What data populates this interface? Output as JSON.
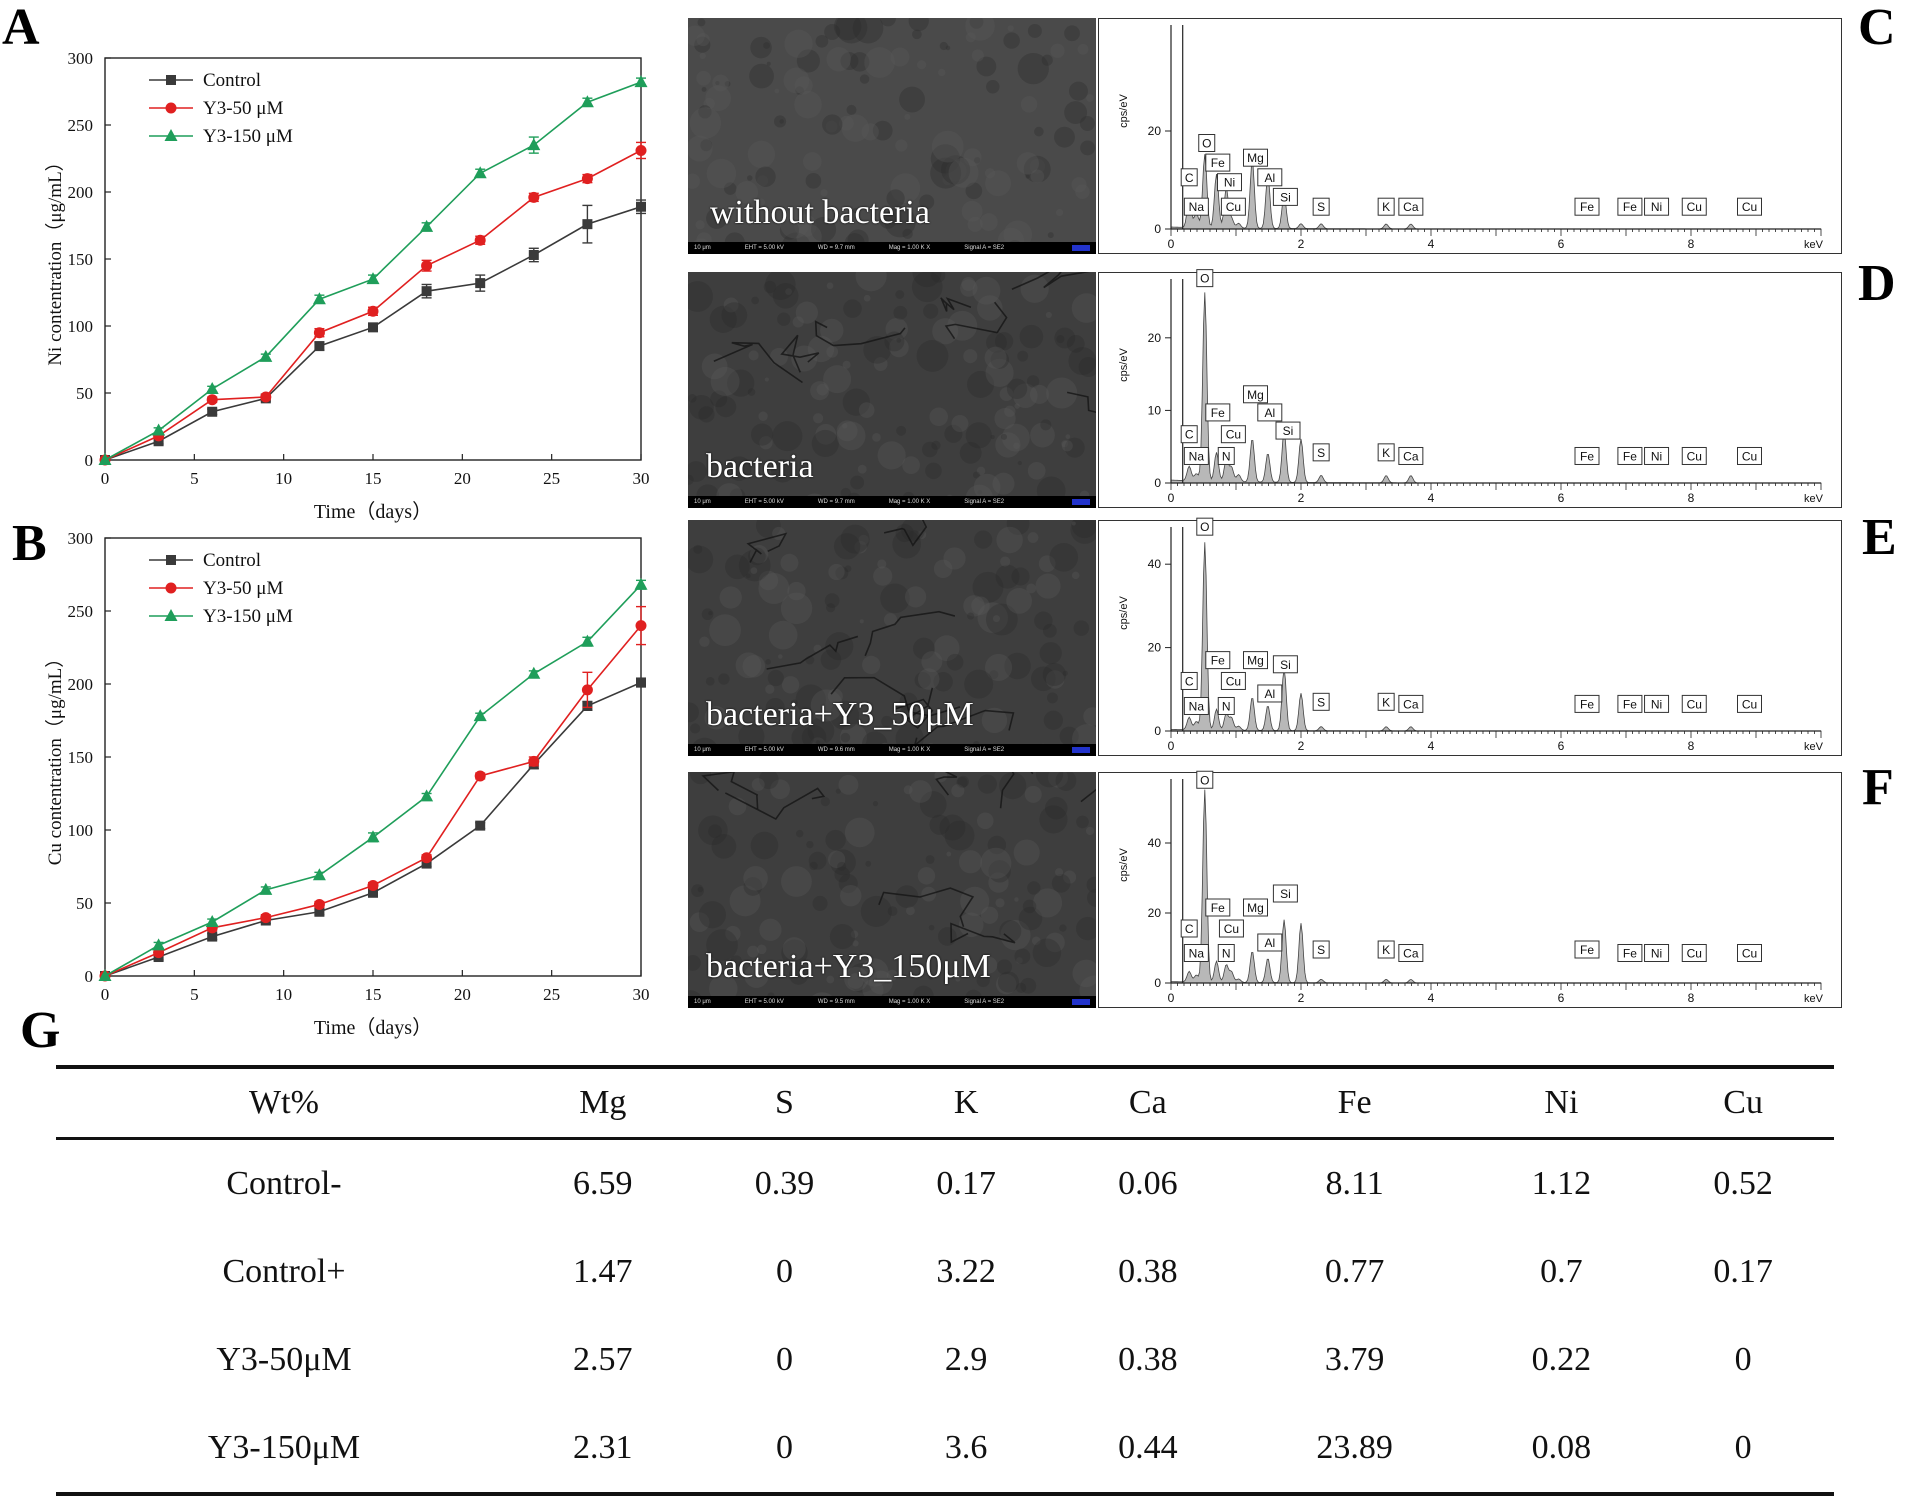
{
  "panel_labels": {
    "A": "A",
    "B": "B",
    "C": "C",
    "D": "D",
    "E": "E",
    "F": "F",
    "G": "G"
  },
  "chart_data": [
    {
      "type": "line",
      "panel": "A",
      "xlabel": "Time（days）",
      "ylabel": "Ni contentration（μg/mL）",
      "xlim": [
        0,
        30
      ],
      "ylim": [
        0,
        300
      ],
      "xticks": [
        0,
        5,
        10,
        15,
        20,
        25,
        30
      ],
      "yticks": [
        0,
        50,
        100,
        150,
        200,
        250,
        300
      ],
      "legend": "top-left",
      "x": [
        0,
        3,
        6,
        9,
        12,
        15,
        18,
        21,
        24,
        27,
        30
      ],
      "series": [
        {
          "name": "Control",
          "color": "#3a3a3a",
          "marker": "square",
          "values": [
            0,
            14,
            36,
            46,
            85,
            99,
            126,
            132,
            153,
            176,
            189
          ],
          "errors": [
            0,
            2,
            2,
            2,
            3,
            3,
            5,
            6,
            5,
            14,
            5
          ]
        },
        {
          "name": "Y3-50 μM",
          "color": "#e02020",
          "marker": "circle",
          "values": [
            0,
            18,
            45,
            47,
            95,
            111,
            145,
            164,
            196,
            210,
            231
          ],
          "errors": [
            0,
            2,
            2,
            2,
            3,
            3,
            4,
            3,
            3,
            3,
            6
          ]
        },
        {
          "name": "Y3-150 μM",
          "color": "#1f9e5a",
          "marker": "triangle",
          "values": [
            0,
            22,
            53,
            77,
            120,
            135,
            174,
            214,
            235,
            267,
            282
          ],
          "errors": [
            0,
            2,
            2,
            2,
            3,
            3,
            3,
            3,
            6,
            3,
            3
          ]
        }
      ]
    },
    {
      "type": "line",
      "panel": "B",
      "xlabel": "Time（days）",
      "ylabel": "Cu contentration（μg/mL）",
      "xlim": [
        0,
        30
      ],
      "ylim": [
        0,
        300
      ],
      "xticks": [
        0,
        5,
        10,
        15,
        20,
        25,
        30
      ],
      "yticks": [
        0,
        50,
        100,
        150,
        200,
        250,
        300
      ],
      "legend": "top-left",
      "x": [
        0,
        3,
        6,
        9,
        12,
        15,
        18,
        21,
        24,
        27,
        30
      ],
      "series": [
        {
          "name": "Control",
          "color": "#3a3a3a",
          "marker": "square",
          "values": [
            0,
            13,
            27,
            38,
            44,
            57,
            77,
            103,
            145,
            185,
            201
          ],
          "errors": [
            0,
            2,
            2,
            2,
            2,
            2,
            2,
            2,
            3,
            3,
            3
          ]
        },
        {
          "name": "Y3-50 μM",
          "color": "#e02020",
          "marker": "circle",
          "values": [
            0,
            16,
            33,
            40,
            49,
            62,
            81,
            137,
            147,
            196,
            240
          ],
          "errors": [
            0,
            2,
            2,
            2,
            2,
            2,
            2,
            2,
            3,
            12,
            13
          ]
        },
        {
          "name": "Y3-150 μM",
          "color": "#1f9e5a",
          "marker": "triangle",
          "values": [
            0,
            21,
            37,
            59,
            69,
            95,
            123,
            178,
            207,
            229,
            268
          ],
          "errors": [
            0,
            2,
            2,
            2,
            2,
            3,
            2,
            2,
            2,
            3,
            3
          ]
        }
      ]
    }
  ],
  "sem_images": [
    {
      "caption": "without bacteria",
      "scale": "10 μm",
      "eht": "EHT = 5.00 kV",
      "wd": "WD = 9.7 mm",
      "mag": "Mag = 1.00 K X",
      "signal": "Signal A = SE2"
    },
    {
      "caption": "bacteria",
      "scale": "10 μm",
      "eht": "EHT = 5.00 kV",
      "wd": "WD = 9.7 mm",
      "mag": "Mag = 1.00 K X",
      "signal": "Signal A = SE2"
    },
    {
      "caption": "bacteria+Y3_50μM",
      "scale": "10 μm",
      "eht": "EHT = 5.00 kV",
      "wd": "WD = 9.6 mm",
      "mag": "Mag = 1.00 K X",
      "signal": "Signal A = SE2"
    },
    {
      "caption": "bacteria+Y3_150μM",
      "scale": "10 μm",
      "eht": "EHT = 5.00 kV",
      "wd": "WD = 9.5 mm",
      "mag": "Mag = 1.00 K X",
      "signal": "Signal A = SE2"
    }
  ],
  "eds_spectra": {
    "ylabel": "cps/eV",
    "xunit": "keV",
    "xticks": [
      0,
      2,
      4,
      6,
      8
    ],
    "peaks_keV": [
      0.28,
      0.39,
      0.52,
      0.7,
      0.85,
      0.93,
      1.04,
      1.25,
      1.49,
      1.74,
      2.0,
      2.31,
      3.31,
      3.69
    ],
    "panels": [
      {
        "yticks": [
          0,
          20
        ],
        "ymax": 40,
        "peak_heights": [
          6,
          3,
          15,
          11,
          8,
          2,
          1,
          14,
          11,
          7,
          1,
          1,
          1,
          1
        ],
        "labels": [
          {
            "t": "C",
            "e": 0.28,
            "h": 8
          },
          {
            "t": "Na",
            "e": 0.39,
            "h": 2
          },
          {
            "t": "O",
            "e": 0.55,
            "h": 15
          },
          {
            "t": "Fe",
            "e": 0.72,
            "h": 11
          },
          {
            "t": "Ni",
            "e": 0.9,
            "h": 7
          },
          {
            "t": "Cu",
            "e": 0.96,
            "h": 2
          },
          {
            "t": "Mg",
            "e": 1.3,
            "h": 12
          },
          {
            "t": "Al",
            "e": 1.52,
            "h": 8
          },
          {
            "t": "Si",
            "e": 1.76,
            "h": 4
          },
          {
            "t": "S",
            "e": 2.31,
            "h": 2
          },
          {
            "t": "K",
            "e": 3.31,
            "h": 2
          },
          {
            "t": "Ca",
            "e": 3.69,
            "h": 2
          },
          {
            "t": "Fe",
            "e": 6.4,
            "h": 2
          },
          {
            "t": "Fe",
            "e": 7.06,
            "h": 2
          },
          {
            "t": "Ni",
            "e": 7.47,
            "h": 2
          },
          {
            "t": "Cu",
            "e": 8.05,
            "h": 2
          },
          {
            "t": "Cu",
            "e": 8.9,
            "h": 2
          }
        ]
      },
      {
        "yticks": [
          0,
          10,
          20
        ],
        "ymax": 27,
        "peak_heights": [
          2,
          1,
          26,
          4,
          3,
          2,
          1,
          6,
          4,
          7,
          6,
          1,
          1,
          1
        ],
        "labels": [
          {
            "t": "O",
            "e": 0.52,
            "h": 26.5
          },
          {
            "t": "C",
            "e": 0.28,
            "h": 5
          },
          {
            "t": "Na",
            "e": 0.39,
            "h": 2
          },
          {
            "t": "Fe",
            "e": 0.72,
            "h": 8
          },
          {
            "t": "Cu",
            "e": 0.96,
            "h": 5
          },
          {
            "t": "N",
            "e": 0.85,
            "h": 2
          },
          {
            "t": "Mg",
            "e": 1.3,
            "h": 10.5
          },
          {
            "t": "Al",
            "e": 1.52,
            "h": 8
          },
          {
            "t": "Si",
            "e": 1.8,
            "h": 5.5
          },
          {
            "t": "S",
            "e": 2.31,
            "h": 2.5
          },
          {
            "t": "K",
            "e": 3.31,
            "h": 2.5
          },
          {
            "t": "Ca",
            "e": 3.69,
            "h": 2
          },
          {
            "t": "Fe",
            "e": 6.4,
            "h": 2
          },
          {
            "t": "Fe",
            "e": 7.06,
            "h": 2
          },
          {
            "t": "Ni",
            "e": 7.47,
            "h": 2
          },
          {
            "t": "Cu",
            "e": 8.05,
            "h": 2
          },
          {
            "t": "Cu",
            "e": 8.9,
            "h": 2
          }
        ]
      },
      {
        "yticks": [
          0,
          20,
          40
        ],
        "ymax": 47,
        "peak_heights": [
          3,
          2,
          45,
          5,
          4,
          3,
          1,
          8,
          6,
          15,
          9,
          1,
          1,
          1
        ],
        "labels": [
          {
            "t": "O",
            "e": 0.52,
            "h": 46
          },
          {
            "t": "C",
            "e": 0.28,
            "h": 9
          },
          {
            "t": "Na",
            "e": 0.39,
            "h": 3
          },
          {
            "t": "Fe",
            "e": 0.72,
            "h": 14
          },
          {
            "t": "Cu",
            "e": 0.96,
            "h": 9
          },
          {
            "t": "N",
            "e": 0.85,
            "h": 3
          },
          {
            "t": "Mg",
            "e": 1.3,
            "h": 14
          },
          {
            "t": "Al",
            "e": 1.52,
            "h": 6
          },
          {
            "t": "Si",
            "e": 1.76,
            "h": 13
          },
          {
            "t": "S",
            "e": 2.31,
            "h": 4
          },
          {
            "t": "K",
            "e": 3.31,
            "h": 4
          },
          {
            "t": "Ca",
            "e": 3.69,
            "h": 3.5
          },
          {
            "t": "Fe",
            "e": 6.4,
            "h": 3.5
          },
          {
            "t": "Fe",
            "e": 7.06,
            "h": 3.5
          },
          {
            "t": "Ni",
            "e": 7.47,
            "h": 3.5
          },
          {
            "t": "Cu",
            "e": 8.05,
            "h": 3.5
          },
          {
            "t": "Cu",
            "e": 8.9,
            "h": 3.5
          }
        ]
      },
      {
        "yticks": [
          0,
          20,
          40
        ],
        "ymax": 56,
        "peak_heights": [
          3,
          2,
          55,
          6,
          5,
          3,
          1,
          9,
          7,
          18,
          17,
          1,
          1,
          1
        ],
        "labels": [
          {
            "t": "O",
            "e": 0.52,
            "h": 54.5
          },
          {
            "t": "C",
            "e": 0.28,
            "h": 12
          },
          {
            "t": "Na",
            "e": 0.39,
            "h": 5
          },
          {
            "t": "Fe",
            "e": 0.72,
            "h": 18
          },
          {
            "t": "Cu",
            "e": 0.93,
            "h": 12
          },
          {
            "t": "N",
            "e": 0.85,
            "h": 5
          },
          {
            "t": "Mg",
            "e": 1.3,
            "h": 18
          },
          {
            "t": "Al",
            "e": 1.52,
            "h": 8
          },
          {
            "t": "Si",
            "e": 1.76,
            "h": 22
          },
          {
            "t": "S",
            "e": 2.31,
            "h": 6
          },
          {
            "t": "K",
            "e": 3.31,
            "h": 6
          },
          {
            "t": "Ca",
            "e": 3.69,
            "h": 5
          },
          {
            "t": "Fe",
            "e": 6.4,
            "h": 6
          },
          {
            "t": "Fe",
            "e": 7.06,
            "h": 5
          },
          {
            "t": "Ni",
            "e": 7.47,
            "h": 5
          },
          {
            "t": "Cu",
            "e": 8.05,
            "h": 5
          },
          {
            "t": "Cu",
            "e": 8.9,
            "h": 5
          }
        ]
      }
    ]
  },
  "table": {
    "headers": [
      "Wt%",
      "Mg",
      "S",
      "K",
      "Ca",
      "Fe",
      "Ni",
      "Cu"
    ],
    "rows": [
      [
        "Control-",
        "6.59",
        "0.39",
        "0.17",
        "0.06",
        "8.11",
        "1.12",
        "0.52"
      ],
      [
        "Control+",
        "1.47",
        "0",
        "3.22",
        "0.38",
        "0.77",
        "0.7",
        "0.17"
      ],
      [
        "Y3-50μM",
        "2.57",
        "0",
        "2.9",
        "0.38",
        "3.79",
        "0.22",
        "0"
      ],
      [
        "Y3-150μM",
        "2.31",
        "0",
        "3.6",
        "0.44",
        "23.89",
        "0.08",
        "0"
      ]
    ]
  }
}
